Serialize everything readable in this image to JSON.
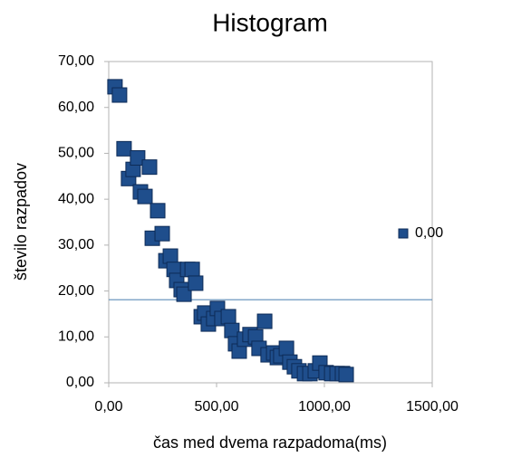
{
  "chart_data": {
    "type": "scatter",
    "title": "Histogram",
    "xlabel": "čas med dvema razpadoma(ms)",
    "ylabel": "število razpadov",
    "xlim": [
      0,
      1500
    ],
    "ylim": [
      0,
      70
    ],
    "xticks": [
      {
        "value": 0,
        "label": "0,00"
      },
      {
        "value": 500,
        "label": "500,00"
      },
      {
        "value": 1000,
        "label": "1000,00"
      },
      {
        "value": 1500,
        "label": "1500,00"
      }
    ],
    "yticks": [
      {
        "value": 0,
        "label": "0,00"
      },
      {
        "value": 10,
        "label": "10,00"
      },
      {
        "value": 20,
        "label": "20,00"
      },
      {
        "value": 30,
        "label": "30,00"
      },
      {
        "value": 40,
        "label": "40,00"
      },
      {
        "value": 50,
        "label": "50,00"
      },
      {
        "value": 60,
        "label": "60,00"
      },
      {
        "value": 70,
        "label": "70,00"
      }
    ],
    "reference_line": 18.1,
    "reference_line_color": "#5b8cb8",
    "legend": "right",
    "series": [
      {
        "name": "0,00",
        "color": "#1f4e8c",
        "x": [
          29,
          50,
          71,
          92,
          113,
          134,
          147,
          168,
          189,
          202,
          227,
          248,
          265,
          286,
          303,
          315,
          336,
          349,
          366,
          387,
          403,
          429,
          445,
          462,
          487,
          504,
          525,
          555,
          571,
          588,
          605,
          630,
          655,
          681,
          697,
          723,
          739,
          765,
          782,
          798,
          824,
          840,
          861,
          882,
          908,
          933,
          958,
          979,
          1008,
          1034,
          1059,
          1084,
          1101
        ],
        "values": [
          64.5,
          62.7,
          51,
          44.5,
          46.5,
          49,
          41.6,
          40.6,
          47,
          31.5,
          37.5,
          32.5,
          26.6,
          27.6,
          24.7,
          22.3,
          20.3,
          19.3,
          24.7,
          24.7,
          21.7,
          14.4,
          15.2,
          12.8,
          14,
          16.2,
          14,
          14.4,
          11.4,
          8.5,
          6.9,
          9.5,
          10.5,
          10,
          7.5,
          13.4,
          6.1,
          6.5,
          5.5,
          5.9,
          7.5,
          4.5,
          3.5,
          2.6,
          2,
          2,
          2.6,
          4.3,
          2.2,
          2,
          2,
          2,
          1.8
        ]
      }
    ]
  }
}
